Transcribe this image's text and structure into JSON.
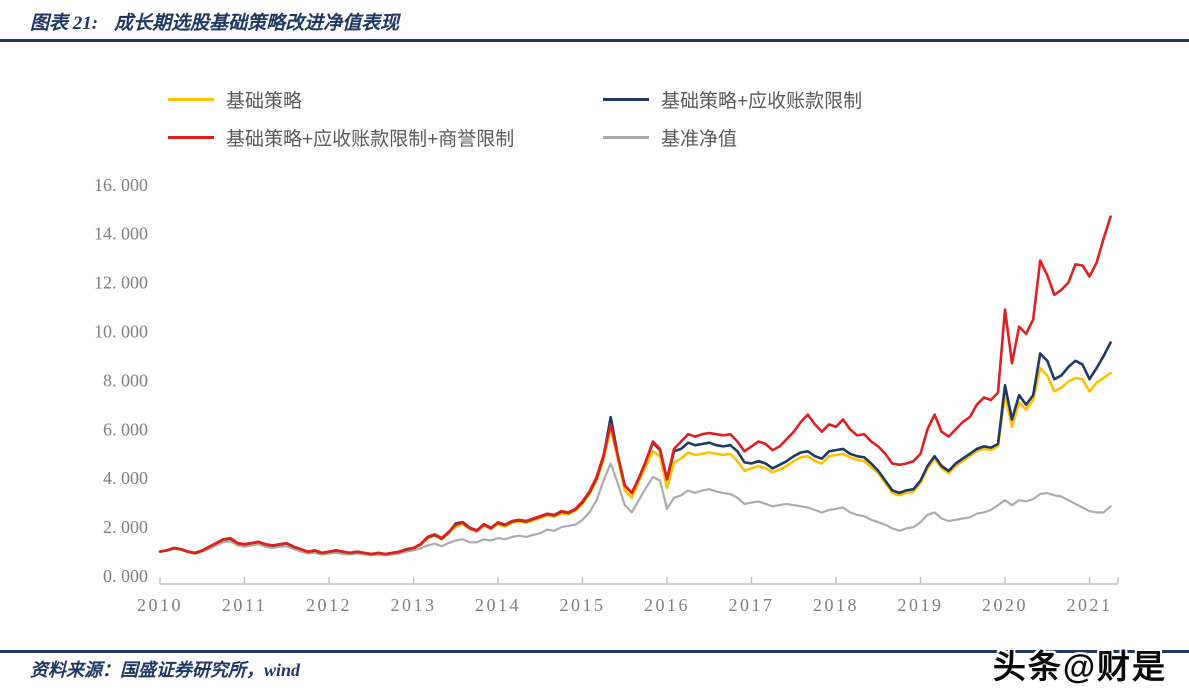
{
  "header": {
    "figure_label": "图表 21:",
    "figure_title": "成长期选股基础策略改进净值表现"
  },
  "footer": {
    "source_note": "资料来源：国盛证券研究所，wind",
    "watermark": "头条@财是"
  },
  "colors": {
    "accent_blue": "#1F3864",
    "legend_text": "#595959",
    "axis_text": "#7F7F7F",
    "axis_line": "#BFBFBF"
  },
  "chart_data": {
    "type": "line",
    "title": "成长期选股基础策略改进净值表现",
    "xlabel": "",
    "ylabel": "",
    "ylim": [
      0,
      16
    ],
    "ytick_step": 2,
    "grid": false,
    "legend_position": "top",
    "x_start": 2010,
    "points_per_year": 12,
    "xticks": [
      2010,
      2011,
      2012,
      2013,
      2014,
      2015,
      2016,
      2017,
      2018,
      2019,
      2020,
      2021
    ],
    "series": [
      {
        "name": "基础策略",
        "color": "#FFC000",
        "values": [
          1.0,
          1.04,
          1.13,
          1.08,
          0.98,
          0.93,
          1.03,
          1.18,
          1.33,
          1.48,
          1.52,
          1.33,
          1.28,
          1.33,
          1.38,
          1.28,
          1.23,
          1.28,
          1.32,
          1.18,
          1.08,
          0.98,
          1.03,
          0.93,
          0.98,
          1.03,
          0.98,
          0.93,
          0.98,
          0.93,
          0.88,
          0.93,
          0.88,
          0.93,
          0.98,
          1.07,
          1.12,
          1.27,
          1.55,
          1.65,
          1.5,
          1.75,
          2.02,
          2.12,
          1.92,
          1.82,
          2.07,
          1.92,
          2.12,
          2.02,
          2.17,
          2.22,
          2.17,
          2.27,
          2.37,
          2.47,
          2.42,
          2.57,
          2.52,
          2.67,
          2.95,
          3.35,
          3.9,
          4.75,
          6.05,
          4.8,
          3.5,
          3.2,
          3.85,
          4.5,
          5.1,
          4.9,
          3.6,
          4.65,
          4.8,
          5.05,
          4.95,
          5.0,
          5.05,
          5.0,
          4.95,
          5.0,
          4.7,
          4.3,
          4.4,
          4.5,
          4.4,
          4.25,
          4.35,
          4.5,
          4.7,
          4.85,
          4.9,
          4.7,
          4.6,
          4.9,
          4.95,
          5.0,
          4.85,
          4.75,
          4.7,
          4.45,
          4.2,
          3.8,
          3.4,
          3.3,
          3.4,
          3.45,
          3.8,
          4.4,
          4.8,
          4.4,
          4.2,
          4.5,
          4.7,
          4.9,
          5.1,
          5.2,
          5.15,
          5.3,
          7.4,
          6.1,
          7.1,
          6.8,
          7.2,
          8.5,
          8.2,
          7.55,
          7.7,
          7.95,
          8.1,
          8.05,
          7.55,
          7.9,
          8.1,
          8.3
        ]
      },
      {
        "name": "基础策略+应收账款限制",
        "color": "#1F3864",
        "values": [
          1.0,
          1.05,
          1.14,
          1.09,
          0.99,
          0.94,
          1.04,
          1.19,
          1.34,
          1.49,
          1.53,
          1.34,
          1.29,
          1.34,
          1.39,
          1.29,
          1.24,
          1.29,
          1.33,
          1.19,
          1.09,
          0.99,
          1.04,
          0.94,
          0.99,
          1.04,
          0.99,
          0.94,
          0.99,
          0.94,
          0.89,
          0.94,
          0.89,
          0.94,
          0.99,
          1.08,
          1.14,
          1.29,
          1.58,
          1.68,
          1.53,
          1.78,
          2.15,
          2.2,
          1.97,
          1.87,
          2.12,
          1.97,
          2.18,
          2.08,
          2.23,
          2.28,
          2.23,
          2.33,
          2.43,
          2.53,
          2.48,
          2.63,
          2.58,
          2.73,
          3.02,
          3.42,
          4.0,
          4.9,
          6.5,
          4.95,
          3.7,
          3.4,
          4.0,
          4.7,
          5.45,
          5.15,
          3.95,
          5.1,
          5.2,
          5.45,
          5.35,
          5.4,
          5.45,
          5.35,
          5.3,
          5.35,
          5.1,
          4.65,
          4.6,
          4.7,
          4.6,
          4.4,
          4.55,
          4.7,
          4.9,
          5.05,
          5.1,
          4.9,
          4.8,
          5.1,
          5.15,
          5.2,
          5.0,
          4.9,
          4.85,
          4.6,
          4.3,
          3.9,
          3.5,
          3.4,
          3.5,
          3.55,
          3.9,
          4.5,
          4.9,
          4.5,
          4.3,
          4.6,
          4.8,
          5.0,
          5.2,
          5.3,
          5.25,
          5.4,
          7.8,
          6.4,
          7.4,
          7.0,
          7.4,
          9.1,
          8.8,
          8.05,
          8.2,
          8.55,
          8.8,
          8.65,
          8.05,
          8.5,
          9.0,
          9.55
        ]
      },
      {
        "name": "基础策略+应收账款限制+商誉限制",
        "color": "#E02020",
        "values": [
          1.0,
          1.05,
          1.15,
          1.1,
          1.0,
          0.95,
          1.05,
          1.2,
          1.35,
          1.5,
          1.55,
          1.35,
          1.3,
          1.35,
          1.4,
          1.3,
          1.25,
          1.3,
          1.34,
          1.2,
          1.1,
          1.0,
          1.05,
          0.95,
          1.0,
          1.05,
          1.0,
          0.95,
          1.0,
          0.95,
          0.9,
          0.95,
          0.9,
          0.95,
          1.0,
          1.1,
          1.15,
          1.3,
          1.6,
          1.7,
          1.55,
          1.8,
          2.1,
          2.18,
          1.95,
          1.85,
          2.1,
          1.95,
          2.2,
          2.1,
          2.25,
          2.3,
          2.25,
          2.35,
          2.45,
          2.55,
          2.5,
          2.65,
          2.6,
          2.75,
          3.05,
          3.45,
          4.05,
          4.95,
          6.2,
          4.95,
          3.7,
          3.4,
          4.0,
          4.7,
          5.5,
          5.2,
          3.97,
          5.2,
          5.5,
          5.8,
          5.7,
          5.8,
          5.85,
          5.8,
          5.75,
          5.8,
          5.5,
          5.1,
          5.3,
          5.5,
          5.4,
          5.15,
          5.3,
          5.6,
          5.9,
          6.3,
          6.6,
          6.2,
          5.9,
          6.2,
          6.1,
          6.4,
          6.0,
          5.75,
          5.8,
          5.5,
          5.3,
          5.0,
          4.6,
          4.55,
          4.6,
          4.7,
          5.0,
          6.0,
          6.6,
          5.9,
          5.7,
          6.0,
          6.3,
          6.5,
          7.0,
          7.3,
          7.2,
          7.5,
          10.9,
          8.7,
          10.2,
          9.9,
          10.5,
          12.9,
          12.3,
          11.5,
          11.7,
          12.0,
          12.75,
          12.7,
          12.25,
          12.8,
          13.8,
          14.7
        ]
      },
      {
        "name": "基准净值",
        "color": "#ABABAB",
        "values": [
          1.0,
          1.04,
          1.11,
          1.07,
          0.97,
          0.91,
          1.0,
          1.12,
          1.25,
          1.38,
          1.42,
          1.25,
          1.2,
          1.25,
          1.3,
          1.2,
          1.15,
          1.2,
          1.22,
          1.1,
          1.0,
          0.92,
          0.95,
          0.88,
          0.92,
          0.95,
          0.9,
          0.88,
          0.92,
          0.88,
          0.85,
          0.88,
          0.85,
          0.88,
          0.92,
          1.0,
          1.05,
          1.12,
          1.25,
          1.32,
          1.22,
          1.35,
          1.45,
          1.5,
          1.38,
          1.38,
          1.5,
          1.45,
          1.55,
          1.5,
          1.6,
          1.65,
          1.6,
          1.68,
          1.75,
          1.9,
          1.85,
          2.0,
          2.05,
          2.1,
          2.3,
          2.6,
          3.1,
          3.9,
          4.6,
          3.8,
          2.9,
          2.6,
          3.1,
          3.6,
          4.05,
          3.9,
          2.75,
          3.2,
          3.3,
          3.5,
          3.4,
          3.5,
          3.55,
          3.45,
          3.4,
          3.35,
          3.2,
          2.95,
          3.0,
          3.05,
          2.95,
          2.85,
          2.9,
          2.95,
          2.9,
          2.85,
          2.8,
          2.7,
          2.6,
          2.7,
          2.75,
          2.8,
          2.6,
          2.5,
          2.45,
          2.3,
          2.2,
          2.1,
          1.95,
          1.85,
          1.95,
          2.0,
          2.2,
          2.5,
          2.6,
          2.35,
          2.25,
          2.3,
          2.35,
          2.4,
          2.55,
          2.6,
          2.7,
          2.9,
          3.1,
          2.9,
          3.1,
          3.05,
          3.15,
          3.35,
          3.4,
          3.3,
          3.25,
          3.1,
          2.95,
          2.8,
          2.65,
          2.6,
          2.6,
          2.85
        ]
      }
    ]
  }
}
